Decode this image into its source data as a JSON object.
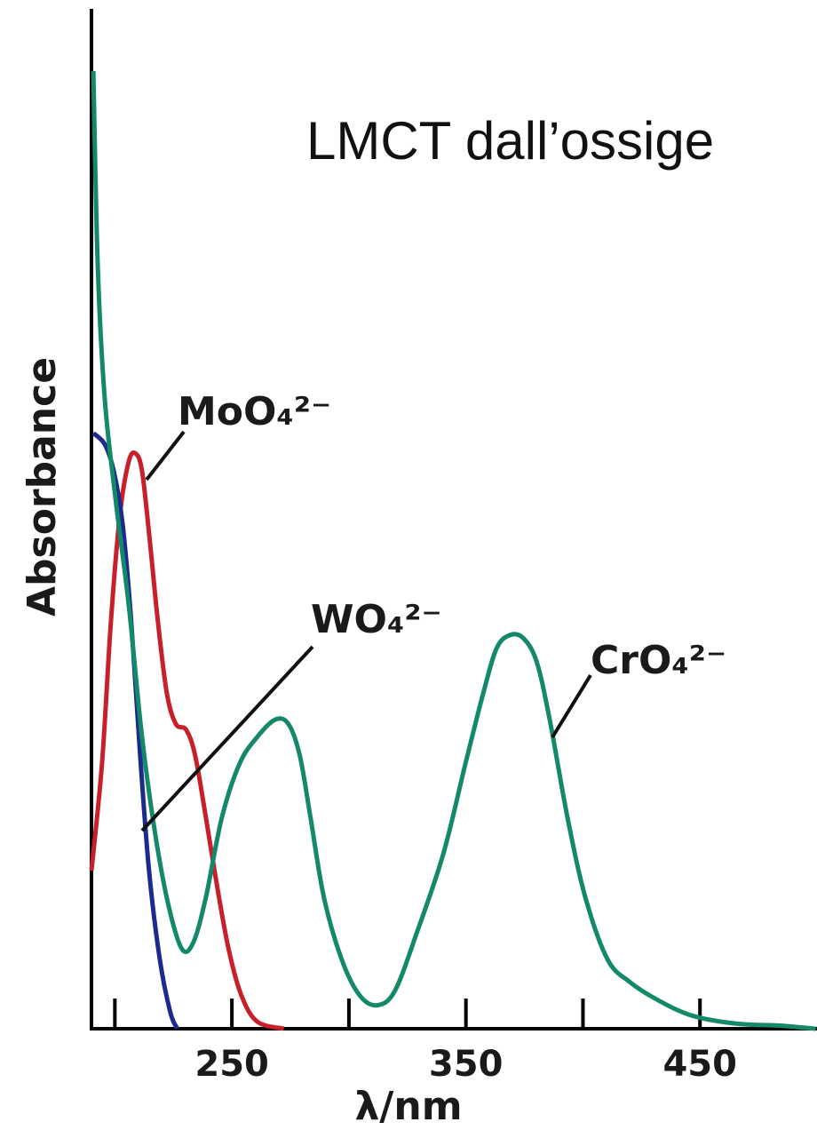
{
  "chart_data": {
    "type": "line",
    "title": "LMCT dall’ossige",
    "x_label": "λ/nm",
    "y_label": "Absorbance",
    "xlim": [
      190,
      500
    ],
    "ylim": [
      0,
      1
    ],
    "xticks": [
      250,
      350,
      450
    ],
    "xminor_ticks": [
      200,
      300,
      400
    ],
    "series": [
      {
        "name": "MoO₄²⁻",
        "color": "#c8202a",
        "x": [
          190,
          194.5,
          198.3,
          202.1,
          205.9,
          208.9,
          211.6,
          214.6,
          218.4,
          222.2,
          226.0,
          230.5,
          234.3,
          238.9,
          243.8,
          248.7,
          254.0,
          260.8,
          272.2
        ],
        "values": [
          0.155,
          0.26,
          0.399,
          0.503,
          0.556,
          0.564,
          0.547,
          0.486,
          0.399,
          0.329,
          0.299,
          0.293,
          0.268,
          0.207,
          0.138,
          0.077,
          0.033,
          0.007,
          0
        ]
      },
      {
        "name": "WO₄²⁻",
        "color": "#1b2a8c",
        "x": [
          190.8,
          195.7,
          199.5,
          203.3,
          207.0,
          210.8,
          214.6,
          219.2,
          223.7,
          226.7
        ],
        "values": [
          0.584,
          0.573,
          0.547,
          0.495,
          0.399,
          0.268,
          0.155,
          0.068,
          0.016,
          0
        ]
      },
      {
        "name": "CrO₄²⁻",
        "color": "#14896a",
        "x": [
          190.8,
          192.7,
          195.7,
          200.2,
          205.9,
          211.6,
          217.3,
          223.0,
          228.7,
          233.6,
          238.9,
          245.7,
          253.3,
          260.8,
          268.4,
          274.1,
          279.0,
          283.6,
          289.3,
          296.9,
          304.5,
          312.0,
          319.6,
          329.0,
          340.4,
          349.8,
          357.4,
          363.1,
          368.8,
          374.5,
          380.2,
          385.8,
          393.4,
          401.0,
          410.5,
          419.9,
          431.3,
          446.4,
          465.4,
          484.3,
          499.5
        ],
        "values": [
          0.939,
          0.747,
          0.617,
          0.521,
          0.416,
          0.286,
          0.19,
          0.12,
          0.078,
          0.085,
          0.129,
          0.207,
          0.26,
          0.286,
          0.303,
          0.299,
          0.268,
          0.207,
          0.129,
          0.068,
          0.033,
          0.023,
          0.037,
          0.094,
          0.172,
          0.26,
          0.329,
          0.373,
          0.386,
          0.383,
          0.36,
          0.303,
          0.207,
          0.129,
          0.068,
          0.046,
          0.029,
          0.013,
          0.005,
          0.003,
          0
        ]
      }
    ]
  }
}
